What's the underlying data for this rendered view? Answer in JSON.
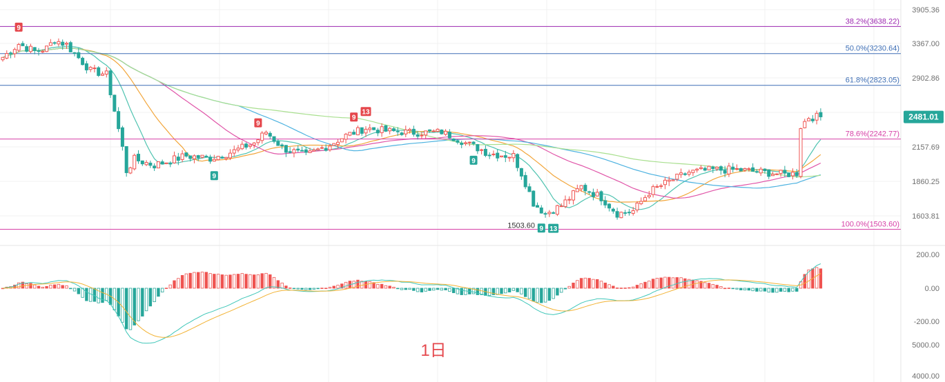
{
  "chart_data": {
    "type": "candlestick",
    "timeframe": "1日",
    "last_price": "2481.01",
    "price_axis": {
      "ticks": [
        "3905.36",
        "3367.00",
        "2902.86",
        "2157.69",
        "1860.25",
        "1603.81"
      ],
      "tick_values": [
        3905.36,
        3367.0,
        2902.86,
        2157.69,
        1860.25,
        1603.81
      ]
    },
    "macd_axis": {
      "ticks": [
        "200.00",
        "0.00",
        "-200.00"
      ],
      "tick_values": [
        200,
        0,
        -200
      ]
    },
    "volume_axis": {
      "ticks": [
        "5000.00",
        "4000.00"
      ]
    },
    "fib_levels": [
      {
        "label": "38.2%(3638.22)",
        "value": 3638.22,
        "color": "#9c27b0"
      },
      {
        "label": "50.0%(3230.64)",
        "value": 3230.64,
        "color": "#3f6fb5"
      },
      {
        "label": "61.8%(2823.05)",
        "value": 2823.05,
        "color": "#3f6fb5"
      },
      {
        "label": "78.6%(2242.77)",
        "value": 2242.77,
        "color": "#d63fa6"
      },
      {
        "label": "100.0%(1503.60)",
        "value": 1503.6,
        "color": "#d63fa6"
      }
    ],
    "low_marker": "1503.60",
    "td_markers": [
      {
        "text": "9",
        "i": 4,
        "kind": "sell"
      },
      {
        "text": "9",
        "i": 53,
        "kind": "buy"
      },
      {
        "text": "9",
        "i": 64,
        "kind": "sell"
      },
      {
        "text": "9",
        "i": 88,
        "kind": "sell"
      },
      {
        "text": "13",
        "i": 91,
        "kind": "sell"
      },
      {
        "text": "9",
        "i": 118,
        "kind": "buy"
      },
      {
        "text": "9",
        "i": 135,
        "kind": "buy"
      },
      {
        "text": "13",
        "i": 138,
        "kind": "buy"
      }
    ],
    "close_anchors": [
      [
        0,
        3180
      ],
      [
        4,
        3360
      ],
      [
        8,
        3260
      ],
      [
        11,
        3300
      ],
      [
        13,
        3420
      ],
      [
        16,
        3350
      ],
      [
        22,
        3000
      ],
      [
        26,
        2950
      ],
      [
        28,
        2550
      ],
      [
        31,
        1950
      ],
      [
        33,
        2050
      ],
      [
        38,
        2000
      ],
      [
        46,
        2080
      ],
      [
        52,
        2060
      ],
      [
        58,
        2120
      ],
      [
        63,
        2200
      ],
      [
        66,
        2320
      ],
      [
        70,
        2150
      ],
      [
        76,
        2080
      ],
      [
        82,
        2180
      ],
      [
        86,
        2280
      ],
      [
        91,
        2360
      ],
      [
        96,
        2330
      ],
      [
        104,
        2310
      ],
      [
        110,
        2320
      ],
      [
        116,
        2200
      ],
      [
        122,
        2100
      ],
      [
        128,
        2080
      ],
      [
        133,
        1700
      ],
      [
        136,
        1620
      ],
      [
        140,
        1680
      ],
      [
        145,
        1820
      ],
      [
        150,
        1740
      ],
      [
        154,
        1620
      ],
      [
        158,
        1640
      ],
      [
        162,
        1780
      ],
      [
        167,
        1860
      ],
      [
        172,
        1940
      ],
      [
        178,
        1960
      ],
      [
        184,
        1960
      ],
      [
        190,
        1940
      ],
      [
        196,
        1920
      ],
      [
        199,
        1930
      ],
      [
        200,
        2380
      ],
      [
        202,
        2480
      ],
      [
        205,
        2481
      ]
    ],
    "ma_colors": [
      "#4fc3b0",
      "#f2a53a",
      "#e055a8",
      "#4db2e0",
      "#a8df8e"
    ],
    "macd_colors": {
      "dif": "#3ec6b8",
      "dea": "#f2b233",
      "up": "#ef5350",
      "down": "#26a69a"
    }
  }
}
